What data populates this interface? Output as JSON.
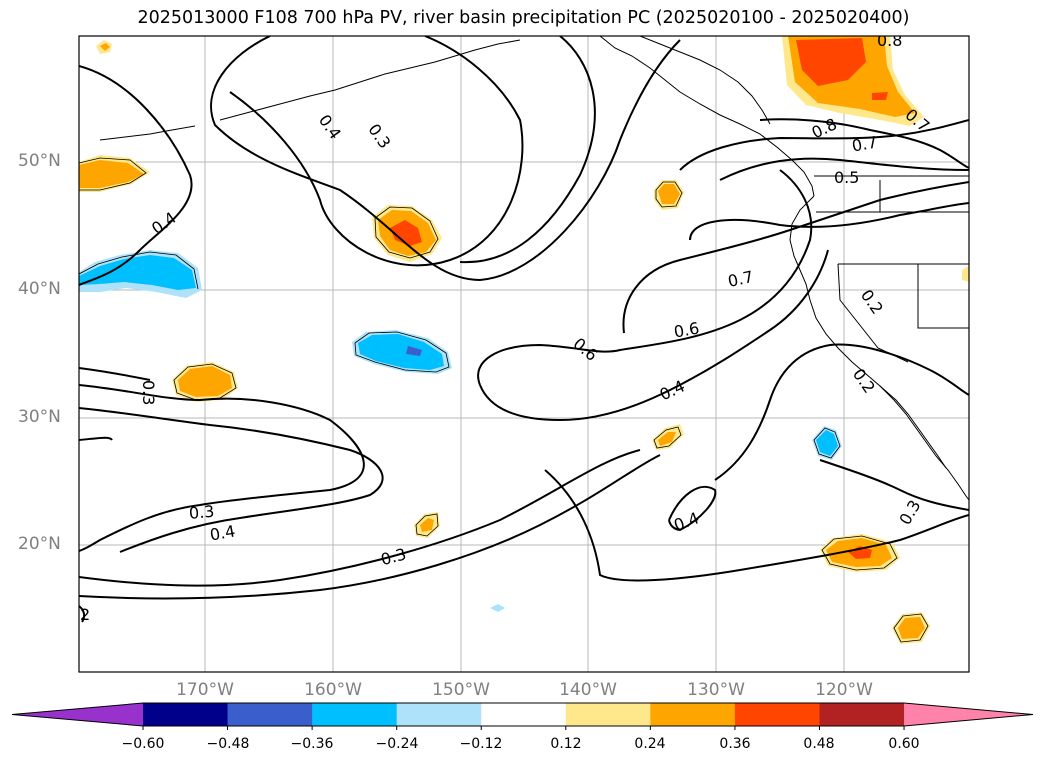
{
  "title": "2025013000 F108 700 hPa PV, river basin precipitation PC (2025020100 - 2025020400)",
  "map": {
    "lat_labels": [
      "50°N",
      "40°N",
      "30°N",
      "20°N"
    ],
    "lon_labels": [
      "170°W",
      "160°W",
      "150°W",
      "140°W",
      "130°W",
      "120°W"
    ],
    "contour_labels": [
      "0.8",
      "0.4",
      "0.3",
      "0.8",
      "0.7",
      "0.7",
      "0.5",
      "0.4",
      "0.7",
      "0.2",
      "0.6",
      "0.6",
      "0.3",
      "0.4",
      "0.2",
      "0.3",
      "0.4",
      "0.4",
      "0.3",
      "0.3",
      "2"
    ]
  },
  "colorbar": {
    "ticks": [
      "−0.60",
      "−0.48",
      "−0.36",
      "−0.24",
      "−0.12",
      "0.12",
      "0.24",
      "0.36",
      "0.48",
      "0.60"
    ],
    "colors": [
      "#9932CC",
      "#00008B",
      "#3A5FCD",
      "#00BFFF",
      "#ADE2FA",
      "#FFFFFF",
      "#FFE88C",
      "#FFA500",
      "#FF4500",
      "#B22222",
      "#FF82AB"
    ]
  }
}
